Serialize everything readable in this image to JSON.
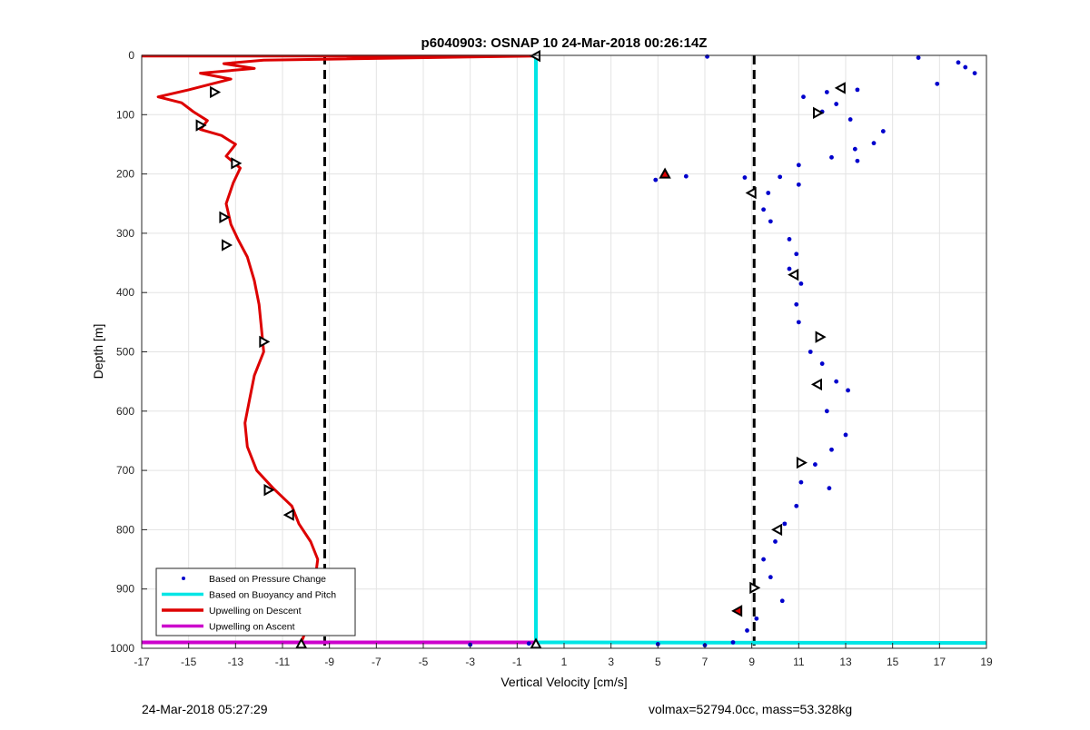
{
  "chart_data": {
    "type": "scatter",
    "title": "p6040903: OSNAP 10 24-Mar-2018 00:26:14Z",
    "xlabel": "Vertical Velocity [cm/s]",
    "ylabel": "Depth [m]",
    "xlim": [
      -17,
      19
    ],
    "ylim": [
      0,
      1000
    ],
    "y_reversed": true,
    "grid": true,
    "x_ticks": [
      -17,
      -15,
      -13,
      -11,
      -9,
      -7,
      -5,
      -3,
      -1,
      1,
      3,
      5,
      7,
      9,
      11,
      13,
      15,
      17,
      19
    ],
    "y_ticks": [
      0,
      100,
      200,
      300,
      400,
      500,
      600,
      700,
      800,
      900,
      1000
    ],
    "legend_position": "bottom-left",
    "series": [
      {
        "name": "Based on Pressure Change",
        "style": "points",
        "color": "#0000cc",
        "points": [
          [
            7.1,
            2
          ],
          [
            16.1,
            4
          ],
          [
            17.8,
            12
          ],
          [
            18.1,
            20
          ],
          [
            18.5,
            30
          ],
          [
            16.9,
            48
          ],
          [
            12.2,
            62
          ],
          [
            11.2,
            70
          ],
          [
            13.5,
            58
          ],
          [
            12.6,
            82
          ],
          [
            12.0,
            95
          ],
          [
            13.2,
            108
          ],
          [
            14.6,
            128
          ],
          [
            14.2,
            148
          ],
          [
            13.4,
            158
          ],
          [
            12.4,
            172
          ],
          [
            11.0,
            185
          ],
          [
            13.5,
            178
          ],
          [
            8.7,
            206
          ],
          [
            6.2,
            204
          ],
          [
            4.9,
            210
          ],
          [
            10.2,
            205
          ],
          [
            11.0,
            218
          ],
          [
            9.7,
            232
          ],
          [
            9.5,
            260
          ],
          [
            9.8,
            280
          ],
          [
            10.6,
            310
          ],
          [
            10.9,
            335
          ],
          [
            10.6,
            360
          ],
          [
            11.1,
            385
          ],
          [
            10.9,
            420
          ],
          [
            11.0,
            450
          ],
          [
            11.5,
            500
          ],
          [
            12.0,
            520
          ],
          [
            12.6,
            550
          ],
          [
            13.1,
            565
          ],
          [
            12.2,
            600
          ],
          [
            13.0,
            640
          ],
          [
            12.4,
            665
          ],
          [
            11.7,
            690
          ],
          [
            11.1,
            720
          ],
          [
            12.3,
            730
          ],
          [
            10.9,
            760
          ],
          [
            10.4,
            790
          ],
          [
            10.0,
            820
          ],
          [
            9.5,
            850
          ],
          [
            9.8,
            880
          ],
          [
            10.3,
            920
          ],
          [
            9.2,
            950
          ],
          [
            8.8,
            970
          ],
          [
            8.2,
            990
          ],
          [
            7.0,
            995
          ],
          [
            5.0,
            993
          ],
          [
            -3.0,
            994
          ],
          [
            -0.5,
            992
          ]
        ]
      },
      {
        "name": "Based on Buoyancy and Pitch",
        "style": "line",
        "color": "#00e5e5",
        "points": [
          [
            -0.2,
            2
          ],
          [
            -0.2,
            100
          ],
          [
            -0.2,
            200
          ],
          [
            -0.2,
            300
          ],
          [
            -0.2,
            400
          ],
          [
            -0.2,
            500
          ],
          [
            -0.2,
            600
          ],
          [
            -0.2,
            700
          ],
          [
            -0.2,
            800
          ],
          [
            -0.2,
            900
          ],
          [
            -0.2,
            990
          ],
          [
            19,
            991
          ]
        ]
      },
      {
        "name": "Upwelling on Descent",
        "style": "line",
        "color": "#dd0000",
        "points": [
          [
            -17,
            1
          ],
          [
            -0.2,
            1
          ],
          [
            -11.8,
            8
          ],
          [
            -13.5,
            14
          ],
          [
            -12.2,
            22
          ],
          [
            -14.5,
            30
          ],
          [
            -13.2,
            40
          ],
          [
            -14.0,
            48
          ],
          [
            -15.0,
            58
          ],
          [
            -16.3,
            70
          ],
          [
            -15.3,
            80
          ],
          [
            -14.8,
            95
          ],
          [
            -14.2,
            110
          ],
          [
            -14.5,
            125
          ],
          [
            -13.6,
            135
          ],
          [
            -13.0,
            150
          ],
          [
            -13.4,
            170
          ],
          [
            -12.8,
            190
          ],
          [
            -13.1,
            215
          ],
          [
            -13.4,
            250
          ],
          [
            -13.2,
            285
          ],
          [
            -12.9,
            310
          ],
          [
            -12.5,
            340
          ],
          [
            -12.2,
            380
          ],
          [
            -12.0,
            420
          ],
          [
            -11.9,
            460
          ],
          [
            -11.8,
            500
          ],
          [
            -12.2,
            540
          ],
          [
            -12.4,
            580
          ],
          [
            -12.6,
            620
          ],
          [
            -12.5,
            660
          ],
          [
            -12.1,
            700
          ],
          [
            -11.4,
            730
          ],
          [
            -10.6,
            760
          ],
          [
            -10.3,
            790
          ],
          [
            -9.8,
            820
          ],
          [
            -9.5,
            850
          ],
          [
            -9.6,
            880
          ],
          [
            -9.9,
            910
          ],
          [
            -10.2,
            940
          ],
          [
            -10.0,
            970
          ],
          [
            -10.2,
            990
          ]
        ]
      },
      {
        "name": "Upwelling on Ascent",
        "style": "line",
        "color": "#cc00cc",
        "points": [
          [
            -17,
            990
          ],
          [
            -0.2,
            990
          ]
        ]
      }
    ],
    "reference_lines": [
      {
        "x": -9.2,
        "style": "dashed",
        "color": "#000000"
      },
      {
        "x": 9.1,
        "style": "dashed",
        "color": "#000000"
      }
    ],
    "markers": [
      {
        "x": -13.9,
        "y": 62,
        "shape": "triangle-right",
        "fill": "#ffffff"
      },
      {
        "x": -14.5,
        "y": 118,
        "shape": "triangle-right",
        "fill": "#ffffff"
      },
      {
        "x": -13.0,
        "y": 182,
        "shape": "triangle-right",
        "fill": "#ffffff"
      },
      {
        "x": -13.5,
        "y": 273,
        "shape": "triangle-right",
        "fill": "#ffffff"
      },
      {
        "x": -13.4,
        "y": 320,
        "shape": "triangle-right",
        "fill": "#ffffff"
      },
      {
        "x": -11.8,
        "y": 483,
        "shape": "triangle-right",
        "fill": "#ffffff"
      },
      {
        "x": -11.6,
        "y": 733,
        "shape": "triangle-right",
        "fill": "#ffffff"
      },
      {
        "x": -10.7,
        "y": 775,
        "shape": "triangle-left",
        "fill": "#ffffff"
      },
      {
        "x": -10.2,
        "y": 993,
        "shape": "triangle-up",
        "fill": "#ffffff"
      },
      {
        "x": -0.2,
        "y": 1,
        "shape": "triangle-left",
        "fill": "#ffffff"
      },
      {
        "x": -0.2,
        "y": 993,
        "shape": "triangle-up",
        "fill": "#ffffff"
      },
      {
        "x": 12.8,
        "y": 55,
        "shape": "triangle-left",
        "fill": "#ffffff"
      },
      {
        "x": 11.8,
        "y": 97,
        "shape": "triangle-right",
        "fill": "#ffffff"
      },
      {
        "x": 5.3,
        "y": 200,
        "shape": "triangle-up",
        "fill": "#dd0000"
      },
      {
        "x": 9.0,
        "y": 232,
        "shape": "triangle-left",
        "fill": "#ffffff"
      },
      {
        "x": 10.8,
        "y": 370,
        "shape": "triangle-left",
        "fill": "#ffffff"
      },
      {
        "x": 11.9,
        "y": 475,
        "shape": "triangle-right",
        "fill": "#ffffff"
      },
      {
        "x": 11.8,
        "y": 555,
        "shape": "triangle-left",
        "fill": "#ffffff"
      },
      {
        "x": 11.1,
        "y": 687,
        "shape": "triangle-right",
        "fill": "#ffffff"
      },
      {
        "x": 10.1,
        "y": 800,
        "shape": "triangle-left",
        "fill": "#ffffff"
      },
      {
        "x": 9.1,
        "y": 898,
        "shape": "triangle-right",
        "fill": "#ffffff"
      },
      {
        "x": 8.4,
        "y": 937,
        "shape": "triangle-left",
        "fill": "#dd0000"
      }
    ]
  },
  "footer": {
    "timestamp": "24-Mar-2018 05:27:29",
    "mass_info": "volmax=52794.0cc, mass=53.328kg"
  }
}
